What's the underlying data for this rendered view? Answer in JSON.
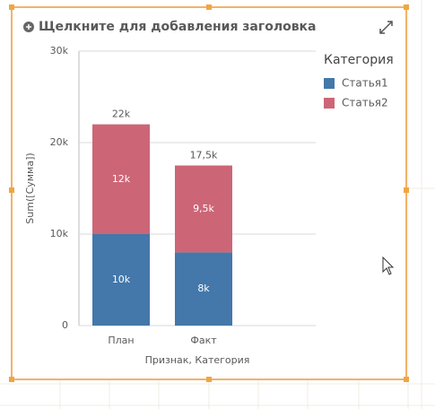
{
  "chart_data": {
    "type": "stacked-bar",
    "title": "Щелкните для добавления заголовка",
    "ylabel": "Sum([Сумма])",
    "xlabel": "Признак, Категория",
    "legend_title": "Категория",
    "legend": "right",
    "categories": [
      "План",
      "Факт"
    ],
    "series": [
      {
        "name": "Статья1",
        "color": "#4477aa",
        "values": [
          10000,
          8000
        ],
        "value_labels": [
          "10k",
          "8k"
        ]
      },
      {
        "name": "Статья2",
        "color": "#cc6677",
        "values": [
          12000,
          9500
        ],
        "value_labels": [
          "12k",
          "9,5k"
        ]
      }
    ],
    "totals": [
      22000,
      17500
    ],
    "total_labels": [
      "22k",
      "17,5k"
    ],
    "ylim": [
      0,
      30000
    ],
    "yticks": [
      0,
      {
        "value": 10000,
        "label": "10k"
      },
      {
        "value": 20000,
        "label": "20k"
      },
      {
        "value": 30000,
        "label": "30k"
      }
    ],
    "grid": true
  }
}
